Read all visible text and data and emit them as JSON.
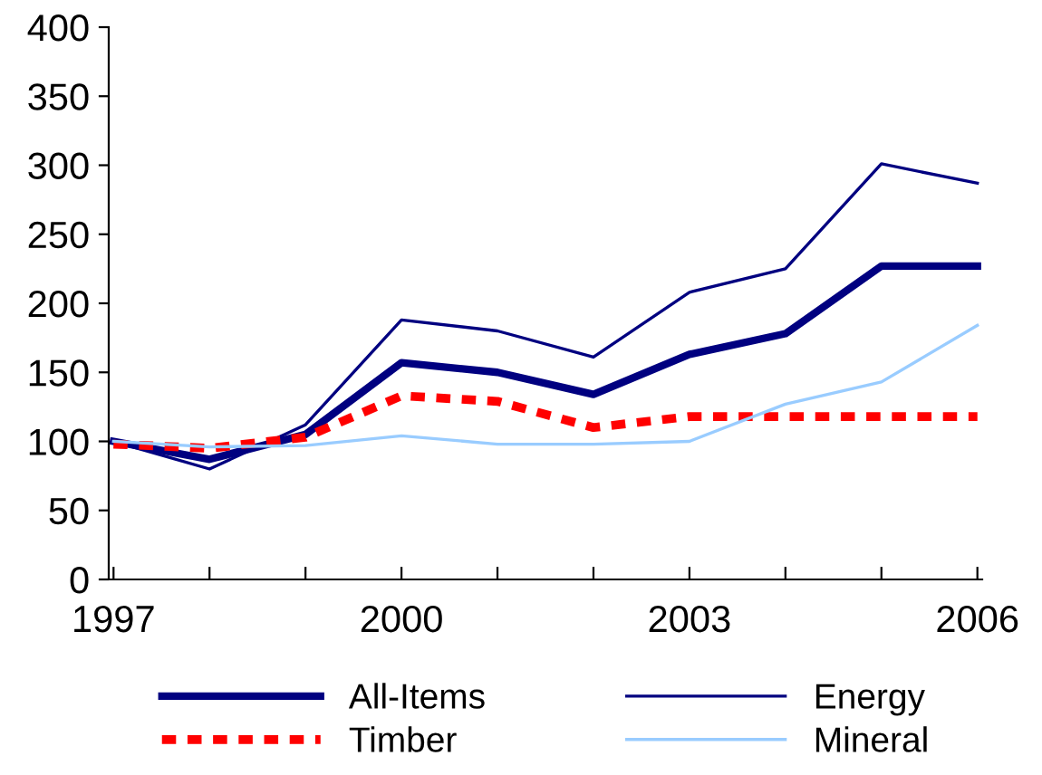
{
  "chart_data": {
    "type": "line",
    "categories": [
      "1997",
      null,
      null,
      "2000",
      null,
      null,
      "2003",
      null,
      null,
      "2006"
    ],
    "series": [
      {
        "name": "All-Items",
        "color": "#000080",
        "line_style": "solid",
        "values": [
          100,
          87,
          105,
          157,
          150,
          134,
          163,
          178,
          227,
          227
        ]
      },
      {
        "name": "Energy",
        "color": "#000080",
        "line_style": "solid",
        "values": [
          100,
          80,
          112,
          188,
          180,
          161,
          208,
          225,
          301,
          287
        ]
      },
      {
        "name": "Timber",
        "color": "#ff0000",
        "line_style": "dashed",
        "values": [
          98,
          95,
          103,
          133,
          129,
          110,
          118,
          118,
          118,
          118
        ]
      },
      {
        "name": "Mineral",
        "color": "#99ccff",
        "line_style": "solid",
        "values": [
          100,
          96,
          97,
          104,
          98,
          98,
          100,
          127,
          143,
          184
        ]
      }
    ],
    "ylim": [
      0,
      400
    ],
    "yticks": [
      0,
      50,
      100,
      150,
      200,
      250,
      300,
      350,
      400
    ],
    "grid": false,
    "legend": "bottom",
    "marker": "none"
  }
}
